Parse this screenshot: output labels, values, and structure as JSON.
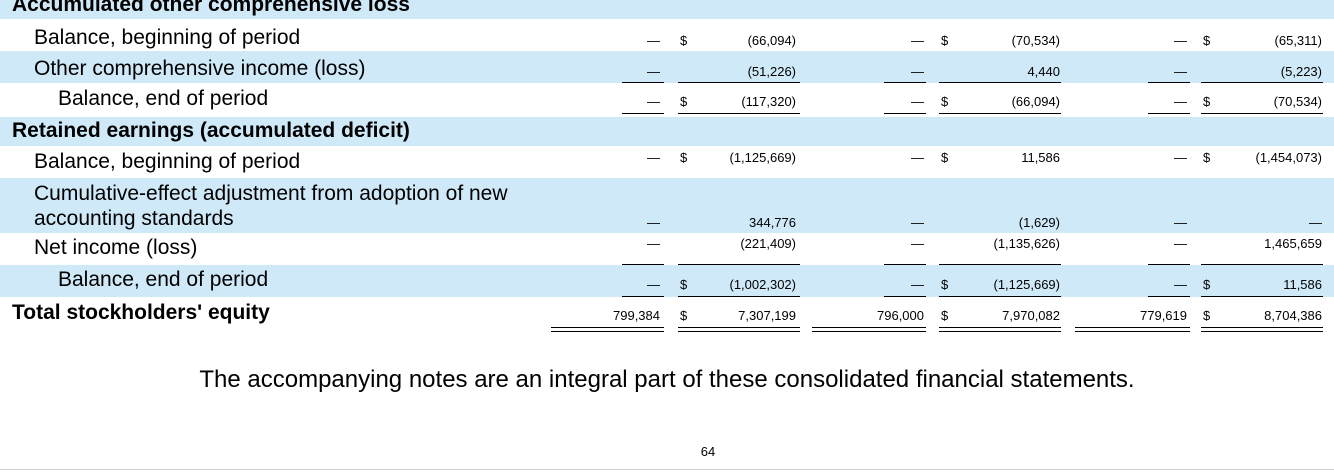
{
  "sections": {
    "aoci_title": "Accumulated other comprehensive loss",
    "retained_title": "Retained earnings (accumulated deficit)"
  },
  "rows": {
    "aoci_begin": {
      "label": "Balance, beginning of period",
      "c1a": "—",
      "c1b": "(66,094)",
      "c2a": "—",
      "c2b": "(70,534)",
      "c3a": "—",
      "c3b": "(65,311)"
    },
    "aoci_oci": {
      "label": "Other comprehensive income (loss)",
      "c1a": "—",
      "c1b": "(51,226)",
      "c2a": "—",
      "c2b": "4,440",
      "c3a": "—",
      "c3b": "(5,223)"
    },
    "aoci_end": {
      "label": "Balance, end of period",
      "c1a": "—",
      "c1b": "(117,320)",
      "c2a": "—",
      "c2b": "(66,094)",
      "c3a": "—",
      "c3b": "(70,534)"
    },
    "re_begin": {
      "label": "Balance, beginning of period",
      "c1a": "—",
      "c1b": "(1,125,669)",
      "c2a": "—",
      "c2b": "11,586",
      "c3a": "—",
      "c3b": "(1,454,073)"
    },
    "re_cumulative": {
      "label": "Cumulative-effect adjustment from adoption of new accounting standards",
      "c1a": "—",
      "c1b": "344,776",
      "c2a": "—",
      "c2b": "(1,629)",
      "c3a": "—",
      "c3b": "—"
    },
    "re_netincome": {
      "label": "Net income (loss)",
      "c1a": "—",
      "c1b": "(221,409)",
      "c2a": "—",
      "c2b": "(1,135,626)",
      "c3a": "—",
      "c3b": "1,465,659"
    },
    "re_end": {
      "label": "Balance, end of period",
      "c1a": "—",
      "c1b": "(1,002,302)",
      "c2a": "—",
      "c2b": "(1,125,669)",
      "c3a": "—",
      "c3b": "11,586"
    },
    "total": {
      "label": "Total stockholders' equity",
      "c1a": "799,384",
      "c1b": "7,307,199",
      "c2a": "796,000",
      "c2b": "7,970,082",
      "c3a": "779,619",
      "c3b": "8,704,386"
    }
  },
  "currency_symbol": "$",
  "footnote": "The accompanying notes are an integral part of these consolidated financial statements.",
  "page_number": "64"
}
